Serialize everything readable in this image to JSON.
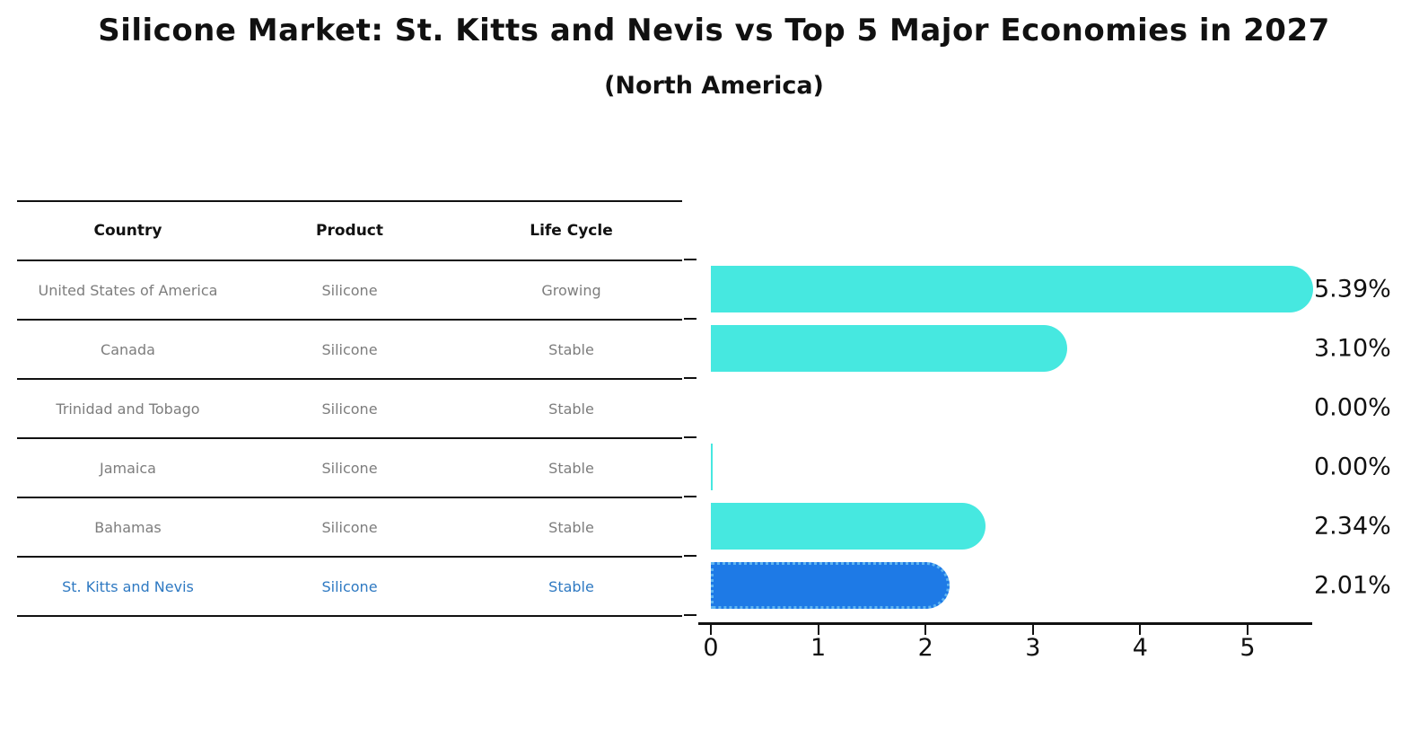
{
  "title": "Silicone Market: St. Kitts and Nevis vs Top 5 Major Economies in 2027",
  "subtitle": "(North America)",
  "table": {
    "headers": {
      "country": "Country",
      "product": "Product",
      "life_cycle": "Life Cycle"
    },
    "rows": [
      {
        "country": "United States of America",
        "product": "Silicone",
        "life_cycle": "Growing",
        "highlight": false
      },
      {
        "country": "Canada",
        "product": "Silicone",
        "life_cycle": "Stable",
        "highlight": false
      },
      {
        "country": "Trinidad and Tobago",
        "product": "Silicone",
        "life_cycle": "Stable",
        "highlight": false
      },
      {
        "country": "Jamaica",
        "product": "Silicone",
        "life_cycle": "Stable",
        "highlight": false
      },
      {
        "country": "Bahamas",
        "product": "Silicone",
        "life_cycle": "Stable",
        "highlight": false
      },
      {
        "country": "St. Kitts and Nevis",
        "product": "Silicone",
        "life_cycle": "Stable",
        "highlight": true
      }
    ]
  },
  "chart_data": {
    "type": "bar",
    "orientation": "horizontal",
    "title": "Silicone Market: St. Kitts and Nevis vs Top 5 Major Economies in 2027",
    "subtitle": "(North America)",
    "categories": [
      "United States of America",
      "Canada",
      "Trinidad and Tobago",
      "Jamaica",
      "Bahamas",
      "St. Kitts and Nevis"
    ],
    "values": [
      5.39,
      3.1,
      0.0,
      0.0,
      2.34,
      2.01
    ],
    "value_labels": [
      "5.39%",
      "3.10%",
      "0.00%",
      "0.00%",
      "2.34%",
      "2.01%"
    ],
    "x_ticks": [
      0,
      1,
      2,
      3,
      4,
      5
    ],
    "xlim": [
      0,
      5.6
    ],
    "grid": false,
    "legend": "none",
    "highlight_index": 5,
    "hairline_zero_indices": [
      3
    ],
    "bar_color": "#46E8E0",
    "highlight_bar_color": "#1E7AE6",
    "highlight_border_color": "#5FB4F0",
    "highlight_text_color": "#2E79C2"
  },
  "colors": {
    "title_text": "#111111",
    "table_text": "#7d7d7d",
    "header_text": "#111111",
    "axis": "#111111"
  }
}
